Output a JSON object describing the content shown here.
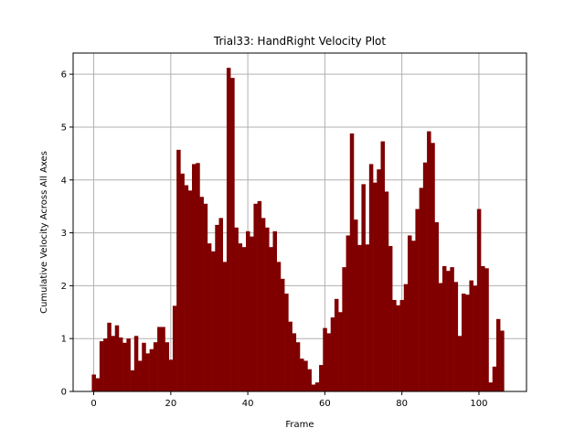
{
  "chart_data": {
    "type": "bar",
    "title": "Trial33: HandRight Velocity Plot",
    "xlabel": "Frame",
    "ylabel": "Cumulative Velocity Across All Axes",
    "xlim": [
      -5.35,
      112.35
    ],
    "ylim": [
      0,
      6.4
    ],
    "x_ticks": [
      0,
      20,
      40,
      60,
      80,
      100
    ],
    "y_ticks": [
      0,
      1,
      2,
      3,
      4,
      5,
      6
    ],
    "grid": true,
    "bar_color": "#800000",
    "grid_color": "#b0b0b0",
    "x": [
      0,
      1,
      2,
      3,
      4,
      5,
      6,
      7,
      8,
      9,
      10,
      11,
      12,
      13,
      14,
      15,
      16,
      17,
      18,
      19,
      20,
      21,
      22,
      23,
      24,
      25,
      26,
      27,
      28,
      29,
      30,
      31,
      32,
      33,
      34,
      35,
      36,
      37,
      38,
      39,
      40,
      41,
      42,
      43,
      44,
      45,
      46,
      47,
      48,
      49,
      50,
      51,
      52,
      53,
      54,
      55,
      56,
      57,
      58,
      59,
      60,
      61,
      62,
      63,
      64,
      65,
      66,
      67,
      68,
      69,
      70,
      71,
      72,
      73,
      74,
      75,
      76,
      77,
      78,
      79,
      80,
      81,
      82,
      83,
      84,
      85,
      86,
      87,
      88,
      89,
      90,
      91,
      92,
      93,
      94,
      95,
      96,
      97,
      98,
      99,
      100,
      101,
      102,
      103,
      104,
      105,
      106
    ],
    "values": [
      0.32,
      0.25,
      0.95,
      1.0,
      1.3,
      1.05,
      1.25,
      1.02,
      0.92,
      1.0,
      0.4,
      1.05,
      0.58,
      0.92,
      0.72,
      0.8,
      0.93,
      1.22,
      1.22,
      0.93,
      0.6,
      1.62,
      4.57,
      4.12,
      3.9,
      3.8,
      4.3,
      4.32,
      3.68,
      3.55,
      2.8,
      2.65,
      3.15,
      3.28,
      2.45,
      6.12,
      5.93,
      3.1,
      2.8,
      2.73,
      3.03,
      2.93,
      3.55,
      3.6,
      3.28,
      3.1,
      2.73,
      3.03,
      2.45,
      2.13,
      1.85,
      1.32,
      1.1,
      0.93,
      0.62,
      0.58,
      0.42,
      0.13,
      0.17,
      0.5,
      1.2,
      1.1,
      1.4,
      1.75,
      1.5,
      2.35,
      2.95,
      4.88,
      3.25,
      2.77,
      3.92,
      2.78,
      4.3,
      3.95,
      4.2,
      4.73,
      3.78,
      2.75,
      1.73,
      1.63,
      1.73,
      2.03,
      2.95,
      2.85,
      3.45,
      3.85,
      4.33,
      4.92,
      4.7,
      3.2,
      2.05,
      2.37,
      2.28,
      2.35,
      2.07,
      1.05,
      1.85,
      1.83,
      2.1,
      2.0,
      3.45,
      2.37,
      2.33,
      0.17,
      0.47,
      1.37,
      1.15
    ]
  }
}
